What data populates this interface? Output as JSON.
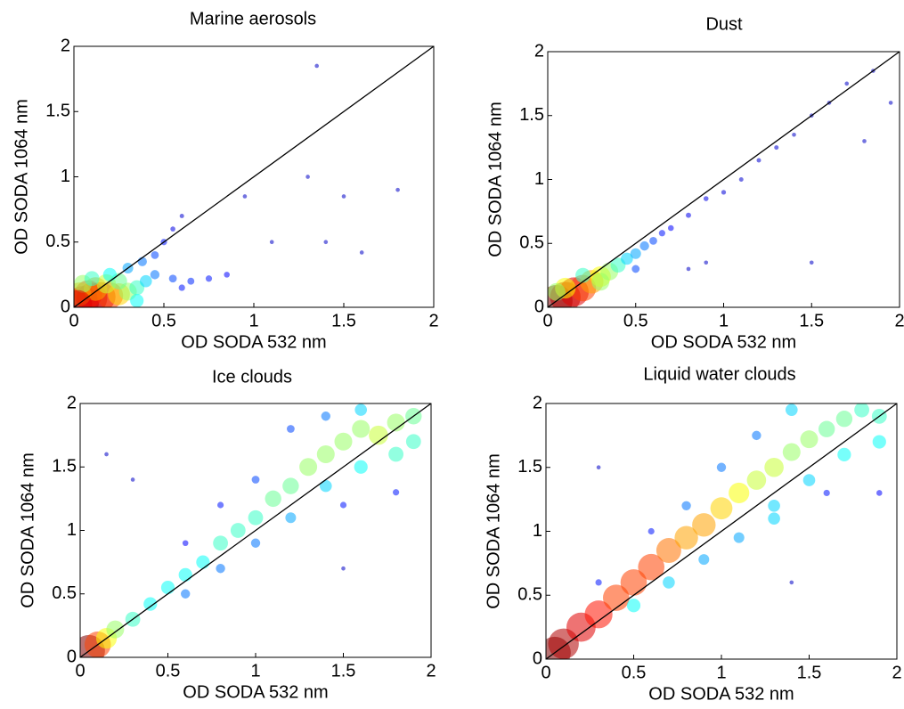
{
  "chart_data": [
    {
      "type": "scatter",
      "title": "Marine aerosols",
      "xlabel": "OD SODA 532 nm",
      "ylabel": "OD SODA 1064 nm",
      "xlim": [
        0,
        2
      ],
      "ylim": [
        0,
        2
      ],
      "xticks": [
        0,
        0.5,
        1,
        1.5,
        2
      ],
      "yticks": [
        0,
        0.5,
        1,
        1.5,
        2
      ],
      "colormap": "jet",
      "line_x": [
        0,
        2
      ],
      "line_y": [
        0,
        2
      ],
      "line_color": "#000000",
      "x": [
        0.05,
        0.1,
        0.15,
        0.2,
        0.08,
        0.03,
        0.12,
        0.25,
        0.3,
        0.18,
        0.25,
        0.35,
        0.05,
        0.1,
        0.2,
        0.3,
        0.38,
        0.45,
        0.5,
        0.4,
        0.45,
        0.55,
        0.65,
        0.75,
        0.85,
        0.6,
        0.35,
        0.02,
        0.55,
        0.6,
        1.35,
        1.3,
        1.6,
        1.4,
        1.8,
        1.5,
        0.95,
        1.1
      ],
      "y": [
        0.04,
        0.07,
        0.08,
        0.09,
        0.1,
        0.1,
        0.14,
        0.1,
        0.12,
        0.18,
        0.2,
        0.15,
        0.18,
        0.22,
        0.25,
        0.3,
        0.35,
        0.4,
        0.5,
        0.2,
        0.25,
        0.22,
        0.2,
        0.22,
        0.25,
        0.15,
        0.05,
        0.02,
        0.6,
        0.7,
        1.85,
        1.0,
        0.42,
        0.5,
        0.9,
        0.85,
        0.85,
        0.5
      ],
      "density": [
        1,
        0.95,
        0.9,
        0.8,
        0.85,
        0.7,
        0.7,
        0.65,
        0.5,
        0.55,
        0.45,
        0.4,
        0.5,
        0.4,
        0.35,
        0.25,
        0.2,
        0.15,
        0.1,
        0.3,
        0.2,
        0.15,
        0.12,
        0.1,
        0.08,
        0.1,
        0.35,
        0.9,
        0.05,
        0.03,
        0.02,
        0.02,
        0.02,
        0.02,
        0.02,
        0.02,
        0.02,
        0.02
      ]
    },
    {
      "type": "scatter",
      "title": "Dust",
      "xlabel": "OD SODA 532 nm",
      "ylabel": "OD SODA 1064 nm",
      "xlim": [
        0,
        2
      ],
      "ylim": [
        0,
        2
      ],
      "xticks": [
        0,
        0.5,
        1,
        1.5,
        2
      ],
      "yticks": [
        0,
        0.5,
        1,
        1.5,
        2
      ],
      "colormap": "jet",
      "line_x": [
        0,
        2
      ],
      "line_y": [
        0,
        2
      ],
      "line_color": "#000000",
      "x": [
        0.05,
        0.1,
        0.15,
        0.2,
        0.25,
        0.3,
        0.35,
        0.4,
        0.45,
        0.5,
        0.55,
        0.6,
        0.65,
        0.7,
        0.8,
        0.9,
        1.0,
        1.1,
        1.2,
        1.3,
        1.4,
        1.5,
        1.6,
        1.7,
        1.85,
        0.1,
        0.2,
        0.3,
        0.05,
        0.8,
        0.9,
        1.5,
        1.8,
        1.95,
        0.5
      ],
      "y": [
        0.05,
        0.08,
        0.12,
        0.15,
        0.2,
        0.24,
        0.28,
        0.33,
        0.38,
        0.42,
        0.48,
        0.52,
        0.58,
        0.62,
        0.72,
        0.85,
        0.9,
        1.0,
        1.15,
        1.25,
        1.35,
        1.5,
        1.6,
        1.75,
        1.85,
        0.15,
        0.25,
        0.2,
        0.12,
        0.3,
        0.35,
        0.35,
        1.3,
        1.6,
        0.3
      ],
      "density": [
        1,
        0.95,
        0.9,
        0.8,
        0.7,
        0.6,
        0.5,
        0.4,
        0.3,
        0.25,
        0.2,
        0.15,
        0.1,
        0.08,
        0.06,
        0.05,
        0.04,
        0.03,
        0.03,
        0.03,
        0.02,
        0.02,
        0.02,
        0.02,
        0.02,
        0.6,
        0.4,
        0.5,
        0.5,
        0.02,
        0.02,
        0.02,
        0.02,
        0.02,
        0.15
      ]
    },
    {
      "type": "scatter",
      "title": "Ice clouds",
      "xlabel": "OD SODA 532 nm",
      "ylabel": "OD SODA 1064 nm",
      "xlim": [
        0,
        2
      ],
      "ylim": [
        0,
        2
      ],
      "xticks": [
        0,
        0.5,
        1,
        1.5,
        2
      ],
      "yticks": [
        0,
        0.5,
        1,
        1.5,
        2
      ],
      "colormap": "jet",
      "line_x": [
        0,
        2
      ],
      "line_y": [
        0,
        2
      ],
      "line_color": "#000000",
      "x": [
        0.05,
        0.1,
        0.15,
        0.2,
        0.3,
        0.4,
        0.5,
        0.6,
        0.7,
        0.8,
        0.9,
        1.0,
        1.1,
        1.2,
        1.3,
        1.4,
        1.5,
        1.6,
        1.7,
        1.8,
        1.9,
        1.9,
        1.8,
        1.6,
        1.4,
        1.2,
        1.0,
        0.8,
        0.6,
        1.0,
        0.8,
        1.2,
        1.4,
        1.5,
        1.8,
        0.6,
        1.6,
        0.15,
        0.3,
        1.5
      ],
      "y": [
        0.05,
        0.1,
        0.15,
        0.22,
        0.3,
        0.42,
        0.55,
        0.65,
        0.75,
        0.9,
        1.0,
        1.1,
        1.25,
        1.35,
        1.5,
        1.6,
        1.7,
        1.8,
        1.75,
        1.85,
        1.9,
        1.7,
        1.6,
        1.5,
        1.35,
        1.1,
        0.9,
        0.7,
        0.5,
        1.4,
        1.2,
        1.8,
        1.9,
        1.2,
        1.3,
        0.9,
        1.95,
        1.6,
        1.4,
        0.7
      ],
      "density": [
        1,
        0.8,
        0.6,
        0.5,
        0.4,
        0.35,
        0.35,
        0.35,
        0.35,
        0.4,
        0.4,
        0.4,
        0.45,
        0.45,
        0.5,
        0.5,
        0.5,
        0.5,
        0.55,
        0.5,
        0.45,
        0.4,
        0.4,
        0.35,
        0.3,
        0.25,
        0.2,
        0.2,
        0.2,
        0.15,
        0.1,
        0.15,
        0.2,
        0.1,
        0.1,
        0.08,
        0.3,
        0.02,
        0.02,
        0.02
      ]
    },
    {
      "type": "scatter",
      "title": "Liquid water clouds",
      "xlabel": "OD SODA 532 nm",
      "ylabel": "OD SODA 1064 nm",
      "xlim": [
        0,
        2
      ],
      "ylim": [
        0,
        2
      ],
      "xticks": [
        0,
        0.5,
        1,
        1.5,
        2
      ],
      "yticks": [
        0,
        0.5,
        1,
        1.5,
        2
      ],
      "colormap": "jet",
      "line_x": [
        0,
        2
      ],
      "line_y": [
        0,
        2
      ],
      "line_color": "#000000",
      "x": [
        0.05,
        0.1,
        0.2,
        0.3,
        0.4,
        0.5,
        0.6,
        0.7,
        0.8,
        0.9,
        1.0,
        1.1,
        1.2,
        1.3,
        1.4,
        1.5,
        1.6,
        1.7,
        1.8,
        1.9,
        1.9,
        1.7,
        1.5,
        1.3,
        1.1,
        0.9,
        0.7,
        0.5,
        0.8,
        1.0,
        1.2,
        0.6,
        1.4,
        1.6,
        1.9,
        0.3,
        0.3,
        1.4,
        1.3
      ],
      "y": [
        0.05,
        0.12,
        0.25,
        0.35,
        0.48,
        0.6,
        0.72,
        0.85,
        0.95,
        1.05,
        1.18,
        1.3,
        1.4,
        1.5,
        1.62,
        1.72,
        1.8,
        1.88,
        1.95,
        1.9,
        1.7,
        1.6,
        1.4,
        1.2,
        0.95,
        0.78,
        0.6,
        0.42,
        1.2,
        1.5,
        1.75,
        1.0,
        1.95,
        1.3,
        1.3,
        0.6,
        1.5,
        0.6,
        1.1
      ],
      "density": [
        1,
        0.95,
        0.9,
        0.85,
        0.8,
        0.8,
        0.8,
        0.75,
        0.7,
        0.7,
        0.65,
        0.6,
        0.55,
        0.55,
        0.5,
        0.5,
        0.45,
        0.45,
        0.4,
        0.4,
        0.35,
        0.35,
        0.3,
        0.3,
        0.25,
        0.25,
        0.3,
        0.35,
        0.2,
        0.2,
        0.2,
        0.1,
        0.3,
        0.1,
        0.08,
        0.1,
        0.02,
        0.02,
        0.3
      ]
    }
  ]
}
